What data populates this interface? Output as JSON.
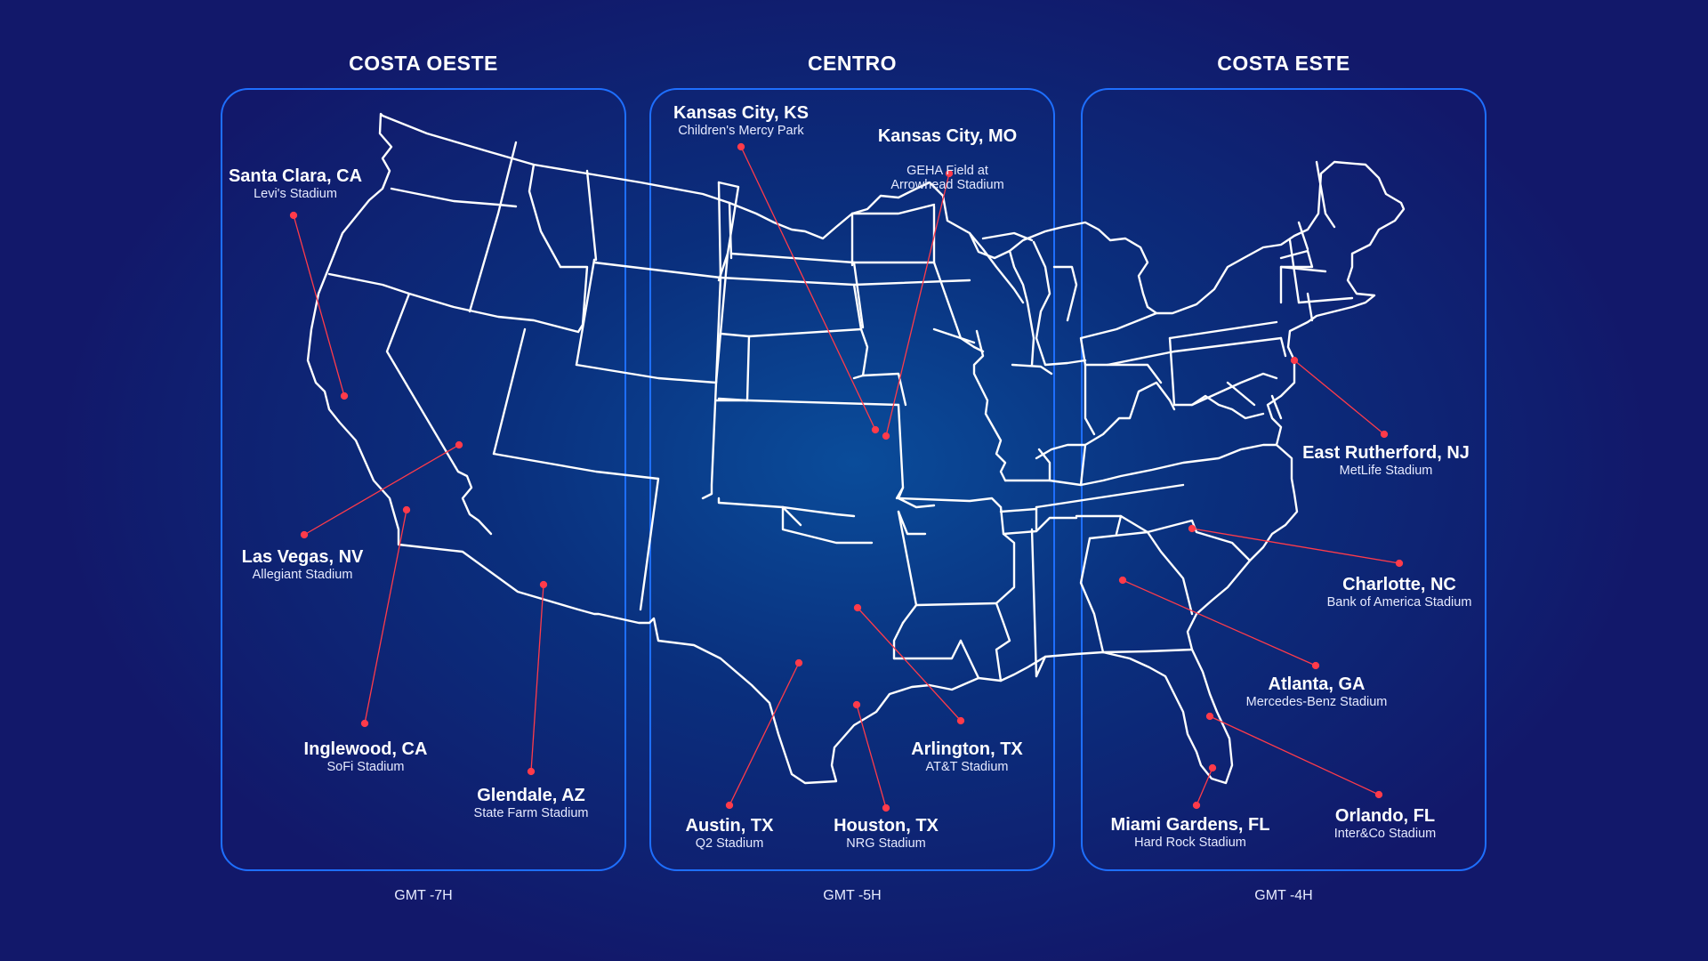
{
  "zones": [
    {
      "title": "COSTA OESTE",
      "gmt": "GMT -7H"
    },
    {
      "title": "CENTRO",
      "gmt": "GMT -5H"
    },
    {
      "title": "COSTA ESTE",
      "gmt": "GMT -4H"
    }
  ],
  "venues": [
    {
      "city": "Santa Clara, CA",
      "stadium": "Levi's Stadium"
    },
    {
      "city": "Las Vegas, NV",
      "stadium": "Allegiant Stadium"
    },
    {
      "city": "Inglewood, CA",
      "stadium": "SoFi Stadium"
    },
    {
      "city": "Glendale, AZ",
      "stadium": "State Farm Stadium"
    },
    {
      "city": "Kansas City, KS",
      "stadium": "Children's Mercy Park"
    },
    {
      "city": "Kansas City, MO",
      "stadium": "GEHA Field at\nArrowhead Stadium"
    },
    {
      "city": "Austin, TX",
      "stadium": "Q2 Stadium"
    },
    {
      "city": "Houston, TX",
      "stadium": "NRG Stadium"
    },
    {
      "city": "Arlington, TX",
      "stadium": "AT&T Stadium"
    },
    {
      "city": "East Rutherford, NJ",
      "stadium": "MetLife Stadium"
    },
    {
      "city": "Charlotte, NC",
      "stadium": "Bank of America Stadium"
    },
    {
      "city": "Atlanta, GA",
      "stadium": "Mercedes-Benz Stadium"
    },
    {
      "city": "Miami Gardens, FL",
      "stadium": "Hard Rock Stadium"
    },
    {
      "city": "Orlando, FL",
      "stadium": "Inter&Co Stadium"
    }
  ],
  "colors": {
    "panel_border": "#1e6fff",
    "map_line": "#ffffff",
    "connector": "#ff3b4a"
  }
}
